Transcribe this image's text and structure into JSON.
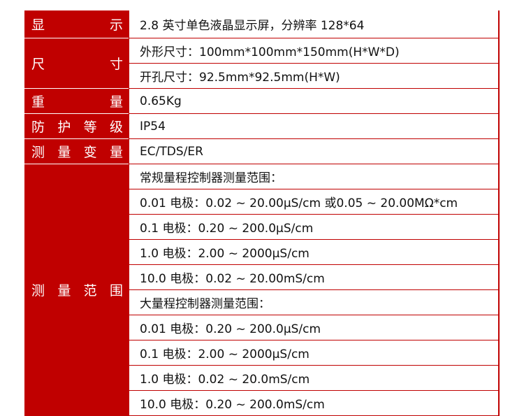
{
  "rows": [
    {
      "label": [
        "显",
        "示"
      ],
      "values": [
        "2.8 英寸单色液晶显示屏，分辨率 128*64"
      ]
    },
    {
      "label": [
        "尺",
        "寸"
      ],
      "values": [
        "外形尺寸：100mm*100mm*150mm(H*W*D)",
        "开孔尺寸：92.5mm*92.5mm(H*W)"
      ]
    },
    {
      "label": [
        "重",
        "量"
      ],
      "values": [
        "0.65Kg"
      ]
    },
    {
      "label": [
        "防",
        "护",
        "等",
        "级"
      ],
      "values": [
        "IP54"
      ]
    },
    {
      "label": [
        "测",
        "量",
        "变",
        "量"
      ],
      "values": [
        "EC/TDS/ER"
      ]
    },
    {
      "label": [
        "测",
        "量",
        "范",
        "围"
      ],
      "values": [
        "常规量程控制器测量范围：",
        "0.01 电极：0.02 ~ 20.00μS/cm 或0.05 ~ 20.00MΩ*cm",
        "0.1 电极：0.20 ~ 200.0μS/cm",
        "1.0 电极：2.00 ~ 2000μS/cm",
        "10.0 电极：0.02 ~ 20.00mS/cm",
        "大量程控制器测量范围：",
        "0.01 电极：0.20 ~ 200.0μS/cm",
        "0.1 电极：2.00 ~ 2000μS/cm",
        "1.0 电极：0.02 ~ 20.0mS/cm",
        "10.0 电极：0.20 ~ 200.0mS/cm"
      ]
    }
  ],
  "colors": {
    "accent": "#c00000"
  }
}
